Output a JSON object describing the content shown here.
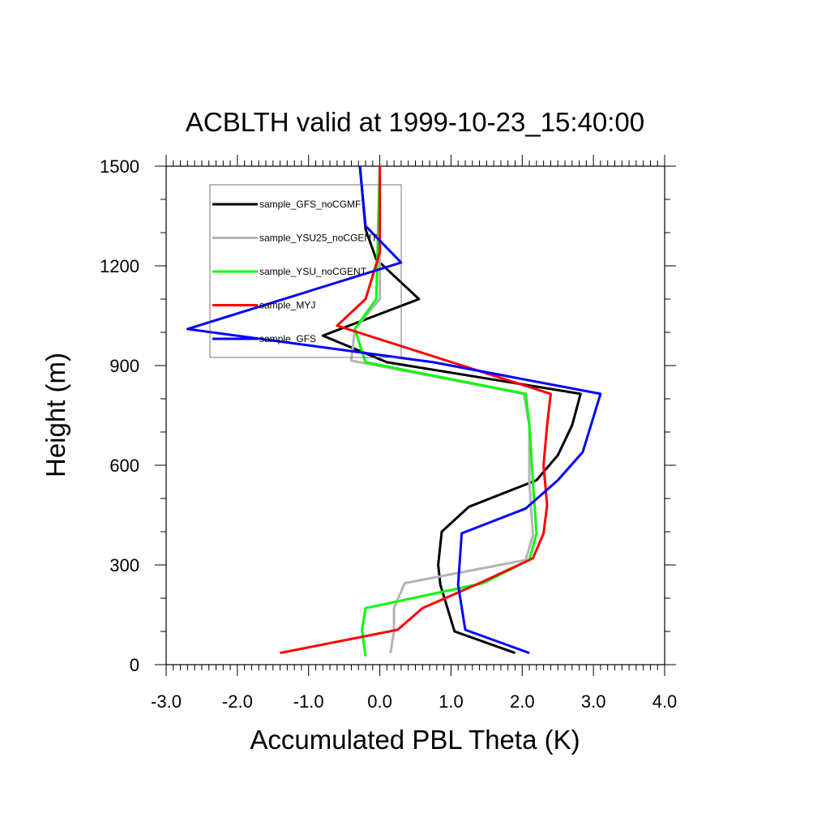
{
  "chart_data": {
    "type": "line",
    "title": "ACBLTH valid at 1999-10-23_15:40:00",
    "xlabel": "Accumulated PBL Theta (K)",
    "ylabel": "Height (m)",
    "xlim": [
      -3.0,
      4.0
    ],
    "ylim": [
      0,
      1500
    ],
    "xticks": [
      -3.0,
      -2.0,
      -1.0,
      0.0,
      1.0,
      2.0,
      3.0,
      4.0
    ],
    "xtick_labels": [
      "-3.0",
      "-2.0",
      "-1.0",
      "0.0",
      "1.0",
      "2.0",
      "3.0",
      "4.0"
    ],
    "yticks": [
      0,
      300,
      600,
      900,
      1200,
      1500
    ],
    "ytick_labels": [
      "0",
      "300",
      "600",
      "900",
      "1200",
      "1500"
    ],
    "grid": false,
    "legend_position": "top-left",
    "series": [
      {
        "name": "sample_GFS_noCGMF",
        "color": "#000000",
        "points": [
          [
            1.9,
            35
          ],
          [
            1.05,
            100
          ],
          [
            0.85,
            240
          ],
          [
            0.82,
            300
          ],
          [
            0.87,
            400
          ],
          [
            1.25,
            475
          ],
          [
            2.2,
            555
          ],
          [
            2.5,
            630
          ],
          [
            2.7,
            720
          ],
          [
            2.82,
            815
          ],
          [
            0.1,
            910
          ],
          [
            -0.8,
            990
          ],
          [
            0.55,
            1100
          ],
          [
            -0.05,
            1220
          ],
          [
            -0.2,
            1310
          ],
          [
            -0.28,
            1500
          ]
        ]
      },
      {
        "name": "sample_YSU25_noCGENT",
        "color": "#b4b4b4",
        "points": [
          [
            0.15,
            35
          ],
          [
            0.2,
            100
          ],
          [
            0.2,
            170
          ],
          [
            0.35,
            245
          ],
          [
            2.05,
            315
          ],
          [
            2.15,
            390
          ],
          [
            2.1,
            550
          ],
          [
            2.1,
            720
          ],
          [
            2.02,
            815
          ],
          [
            -0.4,
            915
          ],
          [
            -0.35,
            1010
          ],
          [
            0.0,
            1100
          ],
          [
            0.0,
            1500
          ]
        ]
      },
      {
        "name": "sample_YSU_noCGENT",
        "color": "#00ff00",
        "points": [
          [
            -0.2,
            25
          ],
          [
            -0.25,
            105
          ],
          [
            -0.2,
            170
          ],
          [
            1.45,
            245
          ],
          [
            2.1,
            315
          ],
          [
            2.2,
            395
          ],
          [
            2.15,
            550
          ],
          [
            2.1,
            720
          ],
          [
            2.05,
            815
          ],
          [
            -0.2,
            910
          ],
          [
            -0.35,
            1010
          ],
          [
            -0.05,
            1100
          ],
          [
            0.0,
            1500
          ]
        ]
      },
      {
        "name": "sample_MYJ",
        "color": "#ff0000",
        "points": [
          [
            -1.4,
            35
          ],
          [
            0.25,
            105
          ],
          [
            0.6,
            170
          ],
          [
            1.4,
            245
          ],
          [
            2.15,
            320
          ],
          [
            2.3,
            395
          ],
          [
            2.35,
            480
          ],
          [
            2.3,
            600
          ],
          [
            2.35,
            720
          ],
          [
            2.4,
            815
          ],
          [
            0.5,
            945
          ],
          [
            -0.6,
            1020
          ],
          [
            -0.2,
            1100
          ],
          [
            0.0,
            1240
          ],
          [
            0.0,
            1500
          ]
        ]
      },
      {
        "name": "sample_GFS",
        "color": "#0000ff",
        "points": [
          [
            2.1,
            35
          ],
          [
            1.2,
            105
          ],
          [
            1.1,
            240
          ],
          [
            1.15,
            395
          ],
          [
            2.05,
            470
          ],
          [
            2.5,
            555
          ],
          [
            2.85,
            640
          ],
          [
            3.1,
            815
          ],
          [
            0.75,
            910
          ],
          [
            -2.7,
            1010
          ],
          [
            0.3,
            1210
          ],
          [
            -0.2,
            1320
          ],
          [
            -0.28,
            1500
          ]
        ]
      }
    ]
  }
}
